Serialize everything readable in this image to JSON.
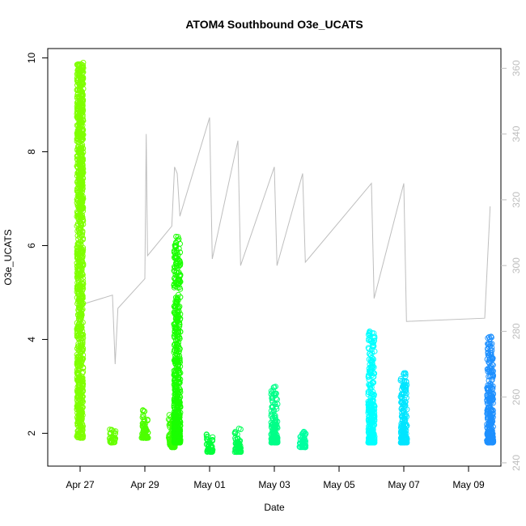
{
  "chart_data": {
    "type": "scatter",
    "title": "ATOM4 Southbound O3e_UCATS",
    "xlabel": "Date",
    "ylabel": "O3e_UCATS",
    "x_axis": {
      "unit": "date",
      "range": [
        "2018-04-26",
        "2018-05-10"
      ],
      "ticks": [
        {
          "date": "2018-04-27",
          "label": "Apr 27"
        },
        {
          "date": "2018-04-29",
          "label": "Apr 29"
        },
        {
          "date": "2018-05-01",
          "label": "May 01"
        },
        {
          "date": "2018-05-03",
          "label": "May 03"
        },
        {
          "date": "2018-05-05",
          "label": "May 05"
        },
        {
          "date": "2018-05-07",
          "label": "May 07"
        },
        {
          "date": "2018-05-09",
          "label": "May 09"
        }
      ]
    },
    "y_axis_left": {
      "ylim": [
        1.3,
        10.2
      ],
      "ticks": [
        {
          "value": 2,
          "label": "2"
        },
        {
          "value": 4,
          "label": "4"
        },
        {
          "value": 6,
          "label": "6"
        },
        {
          "value": 8,
          "label": "8"
        },
        {
          "value": 10,
          "label": "10"
        }
      ]
    },
    "y_axis_right": {
      "ylim": [
        239,
        366
      ],
      "color": "#bebebe",
      "ticks": [
        {
          "value": 240,
          "label": "240"
        },
        {
          "value": 260,
          "label": "260"
        },
        {
          "value": 280,
          "label": "280"
        },
        {
          "value": 300,
          "label": "300"
        },
        {
          "value": 320,
          "label": "320"
        },
        {
          "value": 340,
          "label": "340"
        },
        {
          "value": 360,
          "label": "360"
        }
      ]
    },
    "grid": false,
    "legend": "none",
    "series": [
      {
        "kind": "scatter",
        "marker": "open-circle",
        "clusters": [
          {
            "x": "2018-04-27T00:00",
            "y_min": 1.9,
            "y_max": 9.9,
            "color": "#7FFF00"
          },
          {
            "x": "2018-04-28T00:00",
            "y_min": 1.8,
            "y_max": 2.1,
            "color": "#66FF00"
          },
          {
            "x": "2018-04-29T00:00",
            "y_min": 1.9,
            "y_max": 2.5,
            "color": "#4DFF00"
          },
          {
            "x": "2018-04-29T20:00",
            "y_min": 1.7,
            "y_max": 2.4,
            "color": "#33FF00"
          },
          {
            "x": "2018-04-30T00:00",
            "y_min": 1.8,
            "y_max": 6.2,
            "color": "#1AFF00"
          },
          {
            "x": "2018-05-01T00:00",
            "y_min": 1.6,
            "y_max": 2.0,
            "color": "#00FF3A"
          },
          {
            "x": "2018-05-01T21:00",
            "y_min": 1.6,
            "y_max": 2.1,
            "color": "#00FF55"
          },
          {
            "x": "2018-05-03T00:00",
            "y_min": 1.8,
            "y_max": 3.0,
            "color": "#00FF88"
          },
          {
            "x": "2018-05-03T21:00",
            "y_min": 1.7,
            "y_max": 2.1,
            "color": "#00FFA0"
          },
          {
            "x": "2018-05-06T00:00",
            "y_min": 1.8,
            "y_max": 4.2,
            "color": "#00FFFF"
          },
          {
            "x": "2018-05-07T00:00",
            "y_min": 1.8,
            "y_max": 3.3,
            "color": "#00E5FF"
          },
          {
            "x": "2018-05-09T16:00",
            "y_min": 1.8,
            "y_max": 4.1,
            "color": "#1E90FF"
          }
        ]
      },
      {
        "kind": "line",
        "axis": "right",
        "color": "#bebebe",
        "x": [
          "2018-04-27T00:00",
          "2018-04-28T00:00",
          "2018-04-28T02:00",
          "2018-04-28T04:00",
          "2018-04-29T00:00",
          "2018-04-29T01:00",
          "2018-04-29T02:00",
          "2018-04-29T20:00",
          "2018-04-29T22:00",
          "2018-04-30T00:00",
          "2018-04-30T02:00",
          "2018-05-01T00:00",
          "2018-05-01T02:00",
          "2018-05-01T21:00",
          "2018-05-01T23:00",
          "2018-05-03T00:00",
          "2018-05-03T02:00",
          "2018-05-03T21:00",
          "2018-05-03T23:00",
          "2018-05-06T00:00",
          "2018-05-06T02:00",
          "2018-05-07T00:00",
          "2018-05-07T02:00",
          "2018-05-09T12:00",
          "2018-05-09T16:00"
        ],
        "y": [
          288,
          291,
          270,
          287,
          296,
          340,
          303,
          312,
          330,
          328,
          315,
          345,
          302,
          338,
          300,
          330,
          300,
          328,
          301,
          325,
          290,
          325,
          283,
          284,
          318
        ]
      }
    ]
  }
}
